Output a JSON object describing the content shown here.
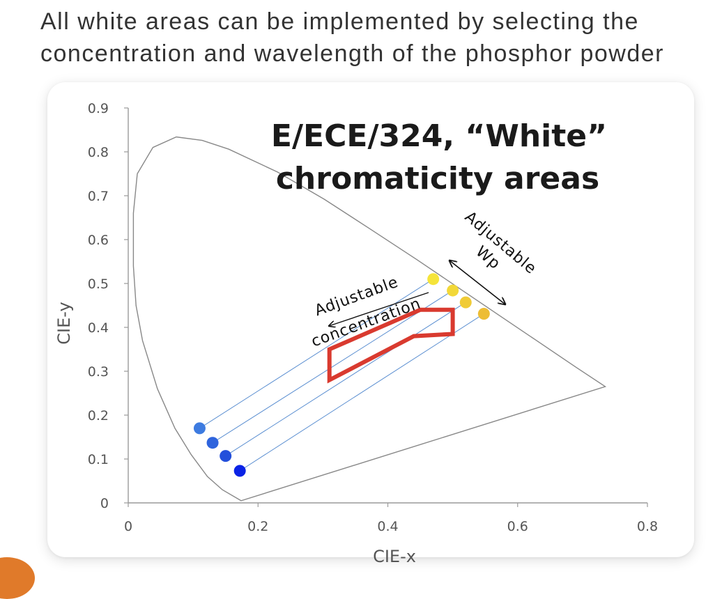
{
  "heading": {
    "line1": "All white areas can be implemented by selecting the",
    "line2": "concentration and wavelength of the phosphor powder"
  },
  "chart_data": {
    "type": "scatter",
    "title": "E/ECE/324, “White”",
    "subtitle": "chromaticity areas",
    "xlabel": "CIE-x",
    "ylabel": "CIE-y",
    "xlim": [
      0,
      0.8
    ],
    "ylim": [
      0,
      0.9
    ],
    "x_ticks": [
      "0",
      "0.2",
      "0.4",
      "0.6",
      "0.8"
    ],
    "y_ticks": [
      "0",
      "0.1",
      "0.2",
      "0.3",
      "0.4",
      "0.5",
      "0.6",
      "0.7",
      "0.8",
      "0.9"
    ],
    "grid": false,
    "colors": {
      "locus": "#888888",
      "mix_line": "#5b8fd1",
      "white_area": "#d93a2f",
      "blue_points": [
        "#3d7be0",
        "#2f64dd",
        "#234fdb",
        "#0a23e6"
      ],
      "yellow_points": [
        "#f5e43a",
        "#f2d838",
        "#f0cb36",
        "#edbd34"
      ]
    },
    "spectral_locus": [
      [
        0.174,
        0.005
      ],
      [
        0.145,
        0.03
      ],
      [
        0.122,
        0.06
      ],
      [
        0.097,
        0.11
      ],
      [
        0.072,
        0.17
      ],
      [
        0.045,
        0.26
      ],
      [
        0.022,
        0.37
      ],
      [
        0.012,
        0.45
      ],
      [
        0.008,
        0.54
      ],
      [
        0.008,
        0.66
      ],
      [
        0.014,
        0.75
      ],
      [
        0.038,
        0.81
      ],
      [
        0.074,
        0.834
      ],
      [
        0.114,
        0.826
      ],
      [
        0.155,
        0.806
      ],
      [
        0.23,
        0.754
      ],
      [
        0.302,
        0.692
      ],
      [
        0.373,
        0.624
      ],
      [
        0.444,
        0.555
      ],
      [
        0.512,
        0.487
      ],
      [
        0.575,
        0.424
      ],
      [
        0.627,
        0.372
      ],
      [
        0.69,
        0.309
      ],
      [
        0.735,
        0.265
      ]
    ],
    "white_area": [
      [
        0.31,
        0.28
      ],
      [
        0.31,
        0.35
      ],
      [
        0.45,
        0.44
      ],
      [
        0.5,
        0.44
      ],
      [
        0.5,
        0.385
      ],
      [
        0.44,
        0.38
      ]
    ],
    "blue_points": [
      {
        "x": 0.11,
        "y": 0.17
      },
      {
        "x": 0.13,
        "y": 0.137
      },
      {
        "x": 0.15,
        "y": 0.107
      },
      {
        "x": 0.172,
        "y": 0.073
      }
    ],
    "yellow_points": [
      {
        "x": 0.47,
        "y": 0.51
      },
      {
        "x": 0.5,
        "y": 0.484
      },
      {
        "x": 0.52,
        "y": 0.457
      },
      {
        "x": 0.548,
        "y": 0.431
      }
    ],
    "annotations": {
      "wp_label_1": "Adjustable",
      "wp_label_2": "Wp",
      "conc_label_1": "Adjustable",
      "conc_label_2": "concentration"
    }
  }
}
